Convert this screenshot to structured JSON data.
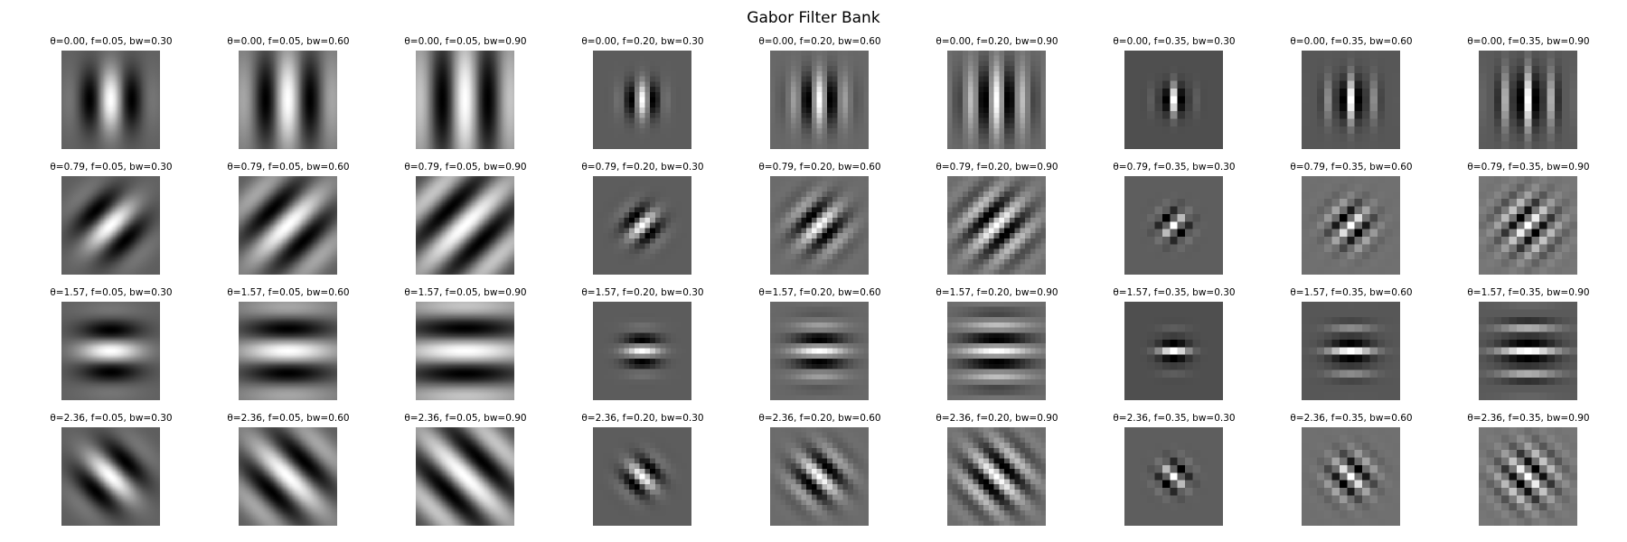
{
  "title": "Gabor Filter Bank",
  "grid": {
    "rows": [
      {
        "theta": 0.0,
        "cells": [
          {
            "label": "θ=0.00, f=0.05, bw=0.30",
            "f": 0.05,
            "bw": 0.3
          },
          {
            "label": "θ=0.00, f=0.05, bw=0.60",
            "f": 0.05,
            "bw": 0.6
          },
          {
            "label": "θ=0.00, f=0.05, bw=0.90",
            "f": 0.05,
            "bw": 0.9
          },
          {
            "label": "θ=0.00, f=0.20, bw=0.30",
            "f": 0.2,
            "bw": 0.3
          },
          {
            "label": "θ=0.00, f=0.20, bw=0.60",
            "f": 0.2,
            "bw": 0.6
          },
          {
            "label": "θ=0.00, f=0.20, bw=0.90",
            "f": 0.2,
            "bw": 0.9
          },
          {
            "label": "θ=0.00, f=0.35, bw=0.30",
            "f": 0.35,
            "bw": 0.3
          },
          {
            "label": "θ=0.00, f=0.35, bw=0.60",
            "f": 0.35,
            "bw": 0.6
          },
          {
            "label": "θ=0.00, f=0.35, bw=0.90",
            "f": 0.35,
            "bw": 0.9
          }
        ]
      },
      {
        "theta": 0.79,
        "cells": [
          {
            "label": "θ=0.79, f=0.05, bw=0.30",
            "f": 0.05,
            "bw": 0.3
          },
          {
            "label": "θ=0.79, f=0.05, bw=0.60",
            "f": 0.05,
            "bw": 0.6
          },
          {
            "label": "θ=0.79, f=0.05, bw=0.90",
            "f": 0.05,
            "bw": 0.9
          },
          {
            "label": "θ=0.79, f=0.20, bw=0.30",
            "f": 0.2,
            "bw": 0.3
          },
          {
            "label": "θ=0.79, f=0.20, bw=0.60",
            "f": 0.2,
            "bw": 0.6
          },
          {
            "label": "θ=0.79, f=0.20, bw=0.90",
            "f": 0.2,
            "bw": 0.9
          },
          {
            "label": "θ=0.79, f=0.35, bw=0.30",
            "f": 0.35,
            "bw": 0.3
          },
          {
            "label": "θ=0.79, f=0.35, bw=0.60",
            "f": 0.35,
            "bw": 0.6
          },
          {
            "label": "θ=0.79, f=0.35, bw=0.90",
            "f": 0.35,
            "bw": 0.9
          }
        ]
      },
      {
        "theta": 1.57,
        "cells": [
          {
            "label": "θ=1.57, f=0.05, bw=0.30",
            "f": 0.05,
            "bw": 0.3
          },
          {
            "label": "θ=1.57, f=0.05, bw=0.60",
            "f": 0.05,
            "bw": 0.6
          },
          {
            "label": "θ=1.57, f=0.05, bw=0.90",
            "f": 0.05,
            "bw": 0.9
          },
          {
            "label": "θ=1.57, f=0.20, bw=0.30",
            "f": 0.2,
            "bw": 0.3
          },
          {
            "label": "θ=1.57, f=0.20, bw=0.60",
            "f": 0.2,
            "bw": 0.6
          },
          {
            "label": "θ=1.57, f=0.20, bw=0.90",
            "f": 0.2,
            "bw": 0.9
          },
          {
            "label": "θ=1.57, f=0.35, bw=0.30",
            "f": 0.35,
            "bw": 0.3
          },
          {
            "label": "θ=1.57, f=0.35, bw=0.60",
            "f": 0.35,
            "bw": 0.6
          },
          {
            "label": "θ=1.57, f=0.35, bw=0.90",
            "f": 0.35,
            "bw": 0.9
          }
        ]
      },
      {
        "theta": 2.36,
        "cells": [
          {
            "label": "θ=2.36, f=0.05, bw=0.30",
            "f": 0.05,
            "bw": 0.3
          },
          {
            "label": "θ=2.36, f=0.05, bw=0.60",
            "f": 0.05,
            "bw": 0.6
          },
          {
            "label": "θ=2.36, f=0.05, bw=0.90",
            "f": 0.05,
            "bw": 0.9
          },
          {
            "label": "θ=2.36, f=0.20, bw=0.30",
            "f": 0.2,
            "bw": 0.3
          },
          {
            "label": "θ=2.36, f=0.20, bw=0.60",
            "f": 0.2,
            "bw": 0.6
          },
          {
            "label": "θ=2.36, f=0.20, bw=0.90",
            "f": 0.2,
            "bw": 0.9
          },
          {
            "label": "θ=2.36, f=0.35, bw=0.30",
            "f": 0.35,
            "bw": 0.3
          },
          {
            "label": "θ=2.36, f=0.35, bw=0.60",
            "f": 0.35,
            "bw": 0.6
          },
          {
            "label": "θ=2.36, f=0.35, bw=0.90",
            "f": 0.35,
            "bw": 0.9
          }
        ]
      }
    ]
  },
  "colors": {
    "background": "#ffffff",
    "text": "#000000",
    "filter_dark": "#000000",
    "filter_neutral": "#7f7f7f",
    "filter_light": "#ffffff"
  }
}
